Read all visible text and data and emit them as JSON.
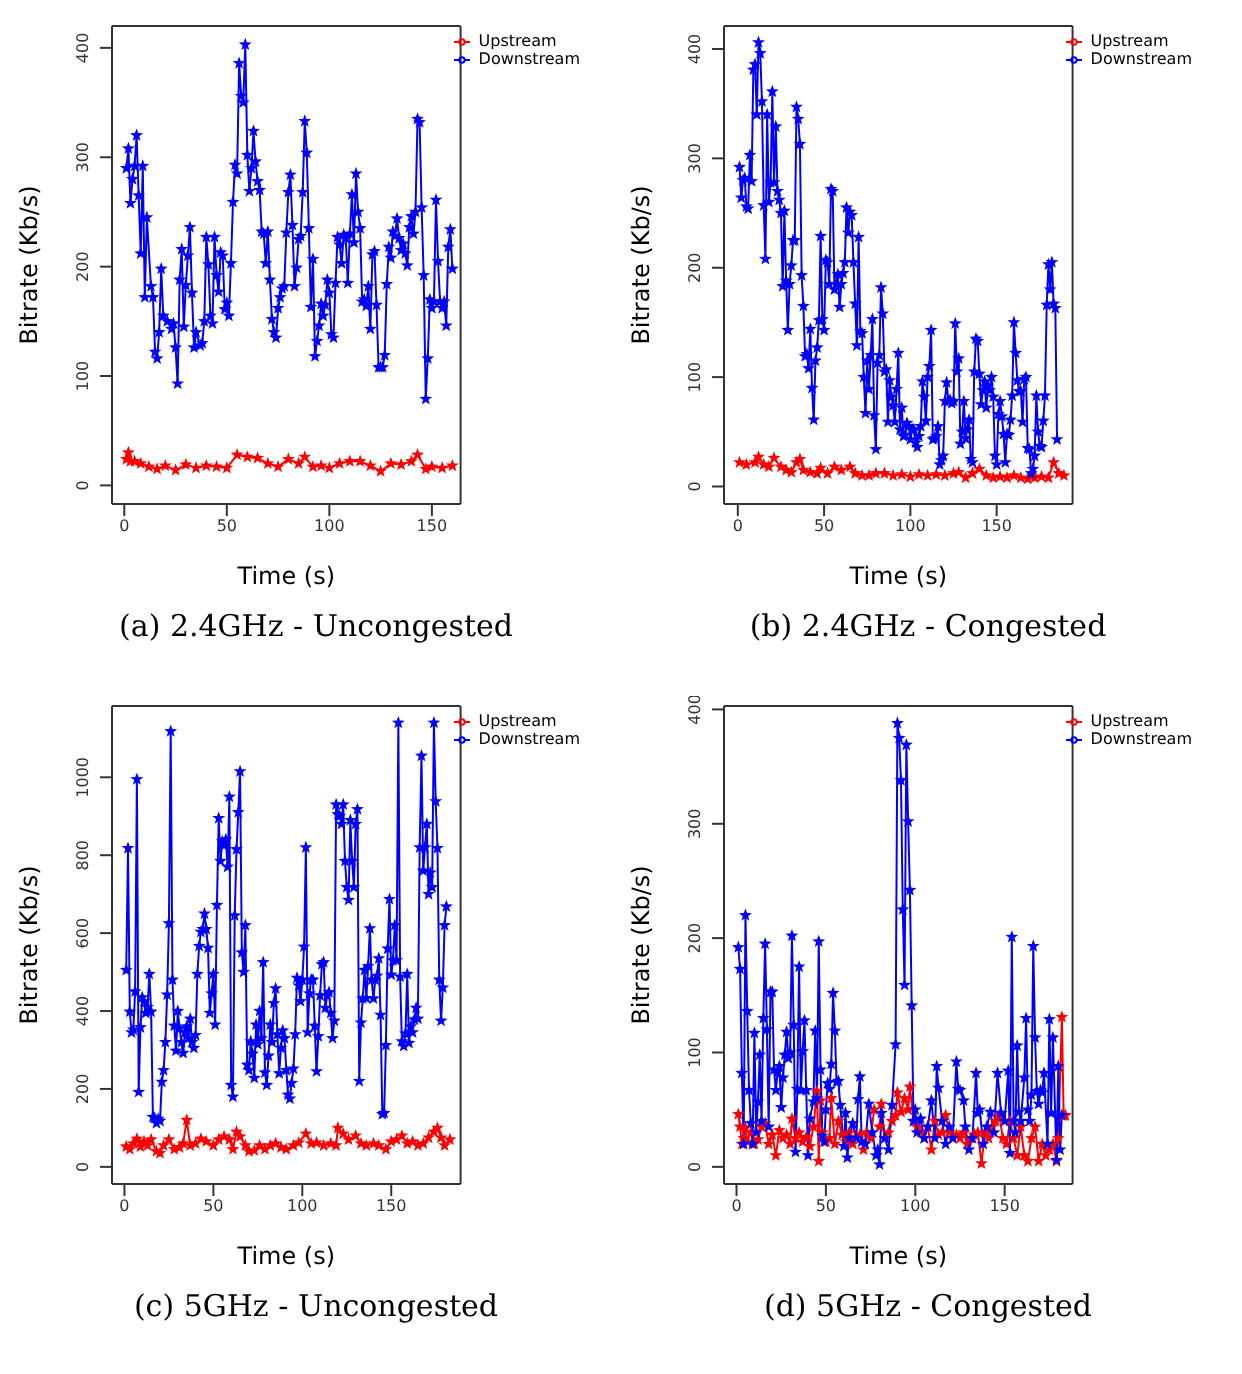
{
  "chart_data": [
    {
      "type": "line",
      "title": "(a) 2.4GHz - Uncongested",
      "xlabel": "Time (s)",
      "ylabel": "Bitrate (Kb/s)",
      "xlim": [
        -6,
        164
      ],
      "xticks": [
        0,
        50,
        100,
        150
      ],
      "ylim": [
        -17,
        420
      ],
      "yticks": [
        0,
        100,
        200,
        300,
        400
      ],
      "legend": "top right",
      "marker": "star",
      "line_style": "solid",
      "series": [
        {
          "name": "Upstream",
          "color": "#ff0000",
          "x": [
            1,
            2,
            3,
            5,
            8,
            12,
            16,
            20,
            25,
            30,
            35,
            40,
            45,
            50,
            55,
            60,
            65,
            70,
            75,
            80,
            85,
            88,
            92,
            96,
            100,
            105,
            110,
            115,
            120,
            125,
            130,
            135,
            140,
            143,
            147,
            150,
            155,
            160
          ],
          "values": [
            24,
            30,
            22,
            22,
            20,
            17,
            15,
            18,
            14,
            19,
            16,
            18,
            17,
            16,
            28,
            26,
            25,
            20,
            17,
            24,
            20,
            26,
            17,
            18,
            16,
            20,
            22,
            22,
            18,
            13,
            20,
            19,
            22,
            28,
            15,
            17,
            16,
            18
          ]
        },
        {
          "name": "Downstream",
          "color": "#0000ff",
          "x": [
            1,
            2,
            3,
            4,
            5,
            6,
            7,
            8,
            9,
            10,
            11,
            13,
            14,
            15,
            16,
            17,
            18,
            19,
            21,
            23,
            24,
            25,
            26,
            27,
            28,
            29,
            30,
            31,
            32,
            33,
            34,
            35,
            37,
            38,
            39,
            40,
            41,
            42,
            43,
            44,
            45,
            46,
            47,
            48,
            49,
            50,
            51,
            52,
            53,
            54,
            55,
            56,
            57,
            58,
            59,
            60,
            61,
            62,
            63,
            64,
            65,
            66,
            67,
            68,
            69,
            70,
            71,
            72,
            73,
            74,
            75,
            76,
            77,
            78,
            79,
            80,
            81,
            82,
            83,
            84,
            85,
            86,
            87,
            88,
            89,
            90,
            91,
            92,
            93,
            94,
            95,
            96,
            97,
            98,
            99,
            100,
            101,
            102,
            103,
            104,
            105,
            106,
            107,
            108,
            109,
            110,
            111,
            112,
            113,
            114,
            115,
            116,
            117,
            118,
            119,
            120,
            121,
            122,
            123,
            124,
            125,
            126,
            127,
            128,
            129,
            130,
            131,
            132,
            133,
            134,
            135,
            136,
            137,
            138,
            139,
            140,
            141,
            142,
            143,
            144,
            145,
            146,
            147,
            148,
            149,
            150,
            151,
            152,
            153,
            154,
            155,
            156,
            157,
            158,
            159,
            160
          ],
          "values": [
            290,
            308,
            258,
            280,
            292,
            320,
            265,
            212,
            292,
            172,
            245,
            182,
            172,
            122,
            116,
            140,
            198,
            155,
            150,
            143,
            148,
            126,
            93,
            188,
            216,
            145,
            183,
            210,
            236,
            176,
            126,
            140,
            128,
            130,
            150,
            227,
            202,
            155,
            148,
            227,
            192,
            177,
            213,
            210,
            161,
            167,
            155,
            203,
            259,
            293,
            285,
            386,
            356,
            350,
            403,
            302,
            269,
            290,
            324,
            296,
            278,
            270,
            232,
            230,
            203,
            232,
            188,
            152,
            140,
            135,
            162,
            172,
            180,
            182,
            231,
            268,
            284,
            238,
            182,
            199,
            225,
            228,
            268,
            333,
            304,
            235,
            163,
            207,
            118,
            132,
            146,
            166,
            155,
            165,
            188,
            176,
            138,
            135,
            185,
            227,
            220,
            203,
            229,
            226,
            185,
            230,
            266,
            222,
            285,
            250,
            235,
            168,
            170,
            164,
            182,
            143,
            211,
            214,
            165,
            108,
            108,
            108,
            119,
            184,
            218,
            208,
            232,
            228,
            244,
            226,
            215,
            221,
            212,
            201,
            236,
            246,
            230,
            250,
            335,
            332,
            254,
            192,
            79,
            116,
            170,
            162,
            168,
            261,
            205,
            168,
            162,
            168,
            146,
            218,
            234,
            198
          ]
        }
      ]
    },
    {
      "type": "line",
      "title": "(b) 2.4GHz - Congested",
      "xlabel": "Time (s)",
      "ylabel": "Bitrate (Kb/s)",
      "xlim": [
        -8,
        194
      ],
      "xticks": [
        0,
        50,
        100,
        150
      ],
      "ylim": [
        -16,
        421
      ],
      "yticks": [
        0,
        100,
        200,
        300,
        400
      ],
      "legend": "top right",
      "marker": "star",
      "line_style": "solid",
      "series": [
        {
          "name": "Upstream",
          "color": "#ff0000",
          "x": [
            1,
            5,
            10,
            12,
            15,
            18,
            21,
            25,
            28,
            31,
            34,
            36,
            38,
            42,
            46,
            48,
            52,
            56,
            60,
            65,
            68,
            72,
            76,
            80,
            85,
            90,
            95,
            100,
            105,
            110,
            115,
            120,
            125,
            128,
            132,
            136,
            140,
            144,
            148,
            152,
            156,
            160,
            164,
            168,
            172,
            176,
            180,
            183,
            186,
            189
          ],
          "values": [
            22,
            20,
            22,
            27,
            20,
            18,
            26,
            18,
            15,
            13,
            22,
            25,
            15,
            13,
            12,
            17,
            12,
            18,
            15,
            18,
            12,
            10,
            10,
            12,
            12,
            10,
            11,
            9,
            11,
            10,
            11,
            10,
            12,
            13,
            8,
            12,
            16,
            10,
            8,
            9,
            8,
            10,
            8,
            7,
            8,
            9,
            8,
            22,
            12,
            10
          ]
        },
        {
          "name": "Downstream",
          "color": "#0000ff",
          "x": [
            1,
            2,
            3,
            4,
            5,
            6,
            7,
            8,
            9,
            10,
            11,
            12,
            13,
            14,
            15,
            16,
            17,
            18,
            19,
            20,
            21,
            22,
            23,
            24,
            25,
            26,
            27,
            28,
            29,
            30,
            31,
            32,
            33,
            34,
            35,
            36,
            37,
            38,
            39,
            40,
            41,
            42,
            43,
            44,
            45,
            46,
            47,
            48,
            49,
            50,
            51,
            52,
            53,
            54,
            55,
            56,
            57,
            58,
            59,
            60,
            61,
            62,
            63,
            64,
            65,
            66,
            67,
            68,
            69,
            70,
            71,
            72,
            73,
            74,
            75,
            76,
            77,
            78,
            79,
            80,
            81,
            82,
            83,
            84,
            85,
            86,
            87,
            88,
            89,
            90,
            91,
            92,
            93,
            94,
            95,
            96,
            97,
            98,
            99,
            100,
            101,
            102,
            103,
            104,
            105,
            106,
            107,
            108,
            109,
            110,
            111,
            112,
            113,
            114,
            115,
            116,
            117,
            118,
            119,
            120,
            121,
            122,
            123,
            124,
            125,
            126,
            127,
            128,
            129,
            130,
            131,
            132,
            133,
            134,
            135,
            136,
            137,
            138,
            139,
            140,
            141,
            142,
            143,
            144,
            145,
            146,
            147,
            148,
            149,
            150,
            151,
            152,
            153,
            154,
            155,
            156,
            157,
            158,
            159,
            160,
            161,
            162,
            163,
            164,
            165,
            166,
            167,
            168,
            169,
            170,
            171,
            172,
            173,
            174,
            175,
            176,
            177,
            178,
            179,
            180,
            181,
            182,
            183,
            184,
            185
          ],
          "values": [
            292,
            264,
            280,
            282,
            256,
            254,
            303,
            279,
            381,
            386,
            340,
            406,
            396,
            352,
            257,
            208,
            340,
            260,
            278,
            361,
            278,
            329,
            270,
            262,
            250,
            183,
            252,
            188,
            143,
            185,
            202,
            225,
            225,
            347,
            336,
            313,
            193,
            165,
            119,
            121,
            108,
            144,
            90,
            61,
            115,
            127,
            152,
            229,
            153,
            143,
            207,
            205,
            185,
            272,
            270,
            180,
            185,
            194,
            164,
            185,
            195,
            205,
            255,
            232,
            251,
            248,
            205,
            167,
            129,
            228,
            142,
            140,
            100,
            67,
            115,
            89,
            120,
            153,
            65,
            34,
            113,
            120,
            182,
            158,
            105,
            107,
            59,
            97,
            82,
            74,
            59,
            89,
            122,
            52,
            72,
            46,
            47,
            58,
            55,
            43,
            52,
            52,
            40,
            36,
            46,
            55,
            96,
            82,
            60,
            100,
            110,
            143,
            43,
            44,
            46,
            55,
            20,
            24,
            28,
            78,
            95,
            78,
            79,
            76,
            78,
            149,
            105,
            117,
            39,
            50,
            78,
            44,
            52,
            61,
            25,
            22,
            105,
            135,
            133,
            103,
            75,
            88,
            96,
            72,
            92,
            88,
            100,
            82,
            28,
            20,
            66,
            78,
            64,
            48,
            22,
            48,
            47,
            61,
            83,
            150,
            122,
            97,
            87,
            87,
            59,
            98,
            100,
            35,
            34,
            12,
            16,
            28,
            83,
            50,
            37,
            36,
            60,
            83,
            166,
            203,
            180,
            205,
            167,
            163,
            43
          ]
        }
      ]
    },
    {
      "type": "line",
      "title": "(c) 5GHz - Uncongested",
      "xlabel": "Time (s)",
      "ylabel": "Bitrate (Kb/s)",
      "xlim": [
        -7,
        189
      ],
      "xticks": [
        0,
        50,
        100,
        150
      ],
      "ylim": [
        -44,
        1183
      ],
      "yticks": [
        0,
        200,
        400,
        600,
        800,
        1000
      ],
      "legend": "top right",
      "marker": "star",
      "line_style": "solid",
      "series": [
        {
          "name": "Upstream",
          "color": "#ff0000",
          "x": [
            1,
            3,
            5,
            7,
            9,
            11,
            13,
            15,
            18,
            20,
            22,
            25,
            28,
            31,
            33,
            35,
            37,
            40,
            43,
            46,
            50,
            53,
            56,
            59,
            61,
            63,
            65,
            68,
            70,
            73,
            76,
            79,
            82,
            85,
            88,
            91,
            95,
            98,
            102,
            105,
            108,
            112,
            116,
            119,
            120,
            123,
            126,
            130,
            133,
            136,
            140,
            143,
            147,
            150,
            153,
            156,
            159,
            162,
            165,
            168,
            171,
            174,
            176,
            178,
            180,
            183
          ],
          "values": [
            52,
            45,
            60,
            72,
            52,
            65,
            55,
            70,
            40,
            35,
            55,
            70,
            45,
            50,
            60,
            120,
            55,
            60,
            72,
            65,
            55,
            70,
            78,
            70,
            45,
            90,
            78,
            55,
            40,
            42,
            55,
            45,
            55,
            60,
            50,
            45,
            55,
            62,
            85,
            60,
            62,
            55,
            60,
            55,
            100,
            85,
            70,
            80,
            60,
            55,
            60,
            55,
            45,
            65,
            70,
            80,
            60,
            65,
            55,
            60,
            75,
            90,
            100,
            75,
            55,
            70
          ]
        },
        {
          "name": "Downstream",
          "color": "#0000ff",
          "x": [
            1,
            2,
            3,
            4,
            5,
            6,
            7,
            8,
            9,
            10,
            11,
            12,
            13,
            14,
            15,
            16,
            17,
            18,
            19,
            20,
            21,
            22,
            23,
            24,
            25,
            26,
            27,
            28,
            29,
            30,
            31,
            32,
            33,
            34,
            35,
            36,
            37,
            38,
            39,
            40,
            41,
            42,
            43,
            44,
            45,
            46,
            47,
            48,
            49,
            50,
            51,
            52,
            53,
            54,
            55,
            56,
            57,
            58,
            59,
            60,
            61,
            62,
            63,
            64,
            65,
            66,
            67,
            68,
            69,
            70,
            71,
            72,
            73,
            74,
            75,
            76,
            77,
            78,
            79,
            80,
            81,
            82,
            83,
            84,
            85,
            86,
            87,
            88,
            89,
            90,
            91,
            92,
            93,
            94,
            95,
            96,
            97,
            98,
            99,
            100,
            101,
            102,
            103,
            104,
            105,
            106,
            107,
            108,
            109,
            110,
            111,
            112,
            113,
            114,
            115,
            116,
            117,
            118,
            119,
            120,
            121,
            122,
            123,
            124,
            125,
            126,
            127,
            128,
            129,
            130,
            131,
            132,
            133,
            134,
            135,
            136,
            137,
            138,
            139,
            140,
            141,
            142,
            143,
            144,
            145,
            146,
            147,
            148,
            149,
            150,
            151,
            152,
            153,
            154,
            155,
            156,
            157,
            158,
            159,
            160,
            161,
            162,
            163,
            164,
            165,
            166,
            167,
            168,
            169,
            170,
            171,
            172,
            173,
            174,
            175,
            176,
            177,
            178,
            179,
            180,
            181
          ],
          "values": [
            505,
            818,
            398,
            345,
            352,
            450,
            995,
            192,
            358,
            435,
            425,
            395,
            410,
            495,
            398,
            128,
            125,
            112,
            123,
            118,
            218,
            248,
            320,
            442,
            625,
            1118,
            480,
            362,
            298,
            400,
            355,
            320,
            292,
            345,
            360,
            330,
            380,
            320,
            305,
            338,
            495,
            567,
            603,
            610,
            650,
            610,
            562,
            395,
            445,
            495,
            365,
            672,
            895,
            785,
            835,
            825,
            840,
            770,
            950,
            210,
            180,
            645,
            815,
            910,
            1015,
            550,
            500,
            620,
            262,
            248,
            322,
            290,
            228,
            365,
            315,
            400,
            330,
            525,
            242,
            210,
            285,
            365,
            320,
            420,
            458,
            340,
            240,
            305,
            350,
            330,
            248,
            185,
            175,
            215,
            252,
            340,
            485,
            465,
            425,
            480,
            565,
            820,
            345,
            445,
            480,
            480,
            362,
            245,
            335,
            440,
            520,
            525,
            408,
            440,
            448,
            395,
            330,
            375,
            930,
            905,
            900,
            880,
            930,
            785,
            718,
            685,
            890,
            785,
            718,
            880,
            918,
            220,
            370,
            432,
            505,
            433,
            515,
            612,
            480,
            432,
            480,
            490,
            535,
            390,
            135,
            138,
            312,
            560,
            687,
            493,
            530,
            620,
            530,
            1140,
            488,
            322,
            310,
            342,
            495,
            318,
            360,
            345,
            378,
            408,
            380,
            820,
            1055,
            760,
            820,
            880,
            700,
            755,
            718,
            1140,
            938,
            818,
            480,
            375,
            460,
            620,
            668
          ]
        }
      ]
    },
    {
      "type": "line",
      "title": "(d) 5GHz - Congested",
      "xlabel": "Time (s)",
      "ylabel": "Bitrate (Kb/s)",
      "xlim": [
        -7,
        188
      ],
      "xticks": [
        0,
        50,
        100,
        150
      ],
      "ylim": [
        -15,
        403
      ],
      "yticks": [
        0,
        100,
        200,
        300,
        400
      ],
      "legend": "top right",
      "marker": "star",
      "line_style": "solid",
      "series": [
        {
          "name": "Upstream",
          "color": "#ff0000",
          "x": [
            1,
            2,
            3,
            4,
            5,
            6,
            8,
            10,
            12,
            14,
            16,
            18,
            20,
            22,
            24,
            26,
            28,
            30,
            31,
            33,
            35,
            37,
            39,
            41,
            43,
            45,
            46,
            47,
            48,
            50,
            52,
            53,
            55,
            57,
            59,
            61,
            63,
            65,
            67,
            69,
            71,
            73,
            75,
            77,
            78,
            80,
            81,
            83,
            85,
            87,
            89,
            90,
            92,
            94,
            96,
            97,
            99,
            101,
            103,
            105,
            107,
            109,
            111,
            113,
            115,
            117,
            119,
            121,
            123,
            125,
            127,
            129,
            131,
            133,
            135,
            137,
            139,
            141,
            143,
            145,
            147,
            149,
            151,
            153,
            155,
            157,
            159,
            161,
            163,
            165,
            167,
            169,
            171,
            173,
            175,
            177,
            179,
            180,
            182,
            183,
            184
          ],
          "values": [
            46,
            35,
            20,
            25,
            34,
            22,
            30,
            20,
            24,
            35,
            38,
            20,
            28,
            10,
            32,
            25,
            28,
            20,
            42,
            25,
            30,
            22,
            26,
            18,
            35,
            66,
            5,
            58,
            30,
            22,
            25,
            60,
            20,
            40,
            28,
            22,
            30,
            20,
            26,
            28,
            15,
            30,
            25,
            50,
            null,
            35,
            55,
            25,
            30,
            40,
            45,
            65,
            48,
            60,
            50,
            70,
            40,
            35,
            30,
            25,
            35,
            15,
            40,
            28,
            30,
            45,
            30,
            25,
            28,
            25,
            30,
            20,
            25,
            28,
            30,
            3,
            30,
            25,
            35,
            40,
            45,
            25,
            20,
            40,
            25,
            10,
            35,
            10,
            5,
            25,
            35,
            5,
            20,
            10,
            15,
            20,
            5,
            25,
            131,
            45,
            45
          ]
        },
        {
          "name": "Downstream",
          "color": "#0000ff",
          "x": [
            1,
            2,
            3,
            4,
            5,
            6,
            7,
            8,
            9,
            10,
            11,
            12,
            13,
            14,
            15,
            16,
            17,
            18,
            19,
            20,
            21,
            22,
            23,
            24,
            25,
            26,
            27,
            28,
            29,
            30,
            31,
            32,
            33,
            34,
            35,
            36,
            37,
            38,
            39,
            40,
            41,
            43,
            44,
            45,
            46,
            47,
            48,
            49,
            50,
            51,
            52,
            53,
            54,
            55,
            56,
            57,
            58,
            60,
            61,
            62,
            63,
            65,
            67,
            68,
            69,
            70,
            72,
            74,
            76,
            78,
            79,
            80,
            81,
            83,
            85,
            87,
            89,
            90,
            91,
            92,
            93,
            94,
            95,
            96,
            97,
            98,
            99,
            100,
            101,
            103,
            105,
            107,
            109,
            111,
            112,
            113,
            115,
            117,
            119,
            121,
            123,
            124,
            125,
            127,
            128,
            130,
            132,
            134,
            135,
            136,
            138,
            140,
            142,
            144,
            146,
            148,
            150,
            152,
            153,
            154,
            155,
            156,
            157,
            158,
            159,
            161,
            162,
            163,
            164,
            165,
            166,
            167,
            168,
            169,
            170,
            171,
            172,
            174,
            175,
            176,
            177,
            179,
            180,
            181,
            182
          ],
          "values": [
            192,
            173,
            82,
            20,
            220,
            136,
            67,
            38,
            20,
            117,
            30,
            57,
            98,
            40,
            130,
            195,
            120,
            35,
            153,
            153,
            85,
            67,
            83,
            88,
            52,
            78,
            98,
            118,
            95,
            100,
            202,
            124,
            13,
            68,
            175,
            67,
            101,
            128,
            67,
            10,
            42,
            57,
            119,
            60,
            197,
            85,
            27,
            22,
            50,
            73,
            68,
            90,
            152,
            119,
            74,
            75,
            54,
            18,
            47,
            8,
            25,
            38,
            25,
            59,
            79,
            22,
            20,
            55,
            30,
            10,
            15,
            2,
            47,
            25,
            15,
            54,
            107,
            388,
            375,
            338,
            225,
            159,
            369,
            302,
            242,
            141,
            40,
            50,
            30,
            42,
            25,
            35,
            58,
            25,
            88,
            69,
            40,
            20,
            35,
            25,
            92,
            68,
            67,
            58,
            35,
            15,
            25,
            82,
            47,
            50,
            20,
            35,
            48,
            30,
            82,
            47,
            40,
            84,
            12,
            201,
            40,
            30,
            106,
            48,
            40,
            78,
            130,
            50,
            40,
            63,
            193,
            113,
            66,
            55,
            67,
            65,
            82,
            20,
            129,
            47,
            113,
            6,
            88,
            15,
            45
          ]
        }
      ]
    }
  ]
}
